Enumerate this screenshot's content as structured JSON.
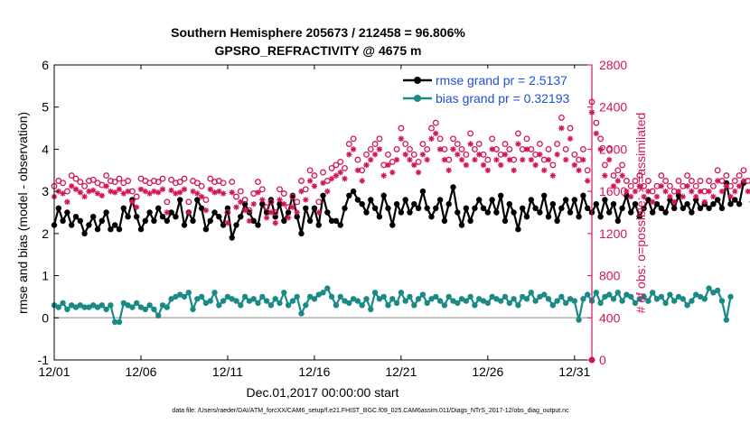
{
  "chart_data": {
    "type": "line",
    "title_line1": "Southern Hemisphere 205673 / 212458 = 96.806%",
    "title_line2": "GPSRO_REFRACTIVITY @ 4675 m",
    "xlabel": "Dec.01,2017 00:00:00 start",
    "ylabel_left": "rmse and bias (model - observation)",
    "ylabel_right": "# of obs: o=possible; ∗=assimilated",
    "footnote": "data file: /Users/raeder/DAI/ATM_forcXX/CAM6_setup/f.e21.FHIST_BGC.f09_025.CAM6assim.011/Diags_NTrS_2017-12/obs_diag_output.nc",
    "xlim": [
      0,
      31
    ],
    "ylim_left": [
      -1,
      6
    ],
    "ylim_right": [
      0,
      2800
    ],
    "x_ticks": [
      0,
      5,
      10,
      15,
      20,
      25,
      30
    ],
    "x_tick_labels": [
      "12/01",
      "12/06",
      "12/11",
      "12/16",
      "12/21",
      "12/26",
      "12/31"
    ],
    "y_left_ticks": [
      -1,
      0,
      1,
      2,
      3,
      4,
      5,
      6
    ],
    "y_left_tick_labels": [
      "-1",
      "0",
      "1",
      "2",
      "3",
      "4",
      "5",
      "6"
    ],
    "y_right_ticks": [
      0,
      400,
      800,
      1200,
      1600,
      2000,
      2400,
      2800
    ],
    "y_right_tick_labels": [
      "0",
      "400",
      "800",
      "1200",
      "1600",
      "2000",
      "2400",
      "2800"
    ],
    "legend": [
      "rmse grand pr = 2.5137",
      "bias grand pr = 0.32193"
    ],
    "x_start": 0,
    "x_step": 0.25,
    "series": [
      {
        "name": "rmse",
        "axis": "left",
        "color": "#000000",
        "marker": "circle",
        "values": [
          2.2,
          2.6,
          2.3,
          2.5,
          2.2,
          2.4,
          2.3,
          2.0,
          2.2,
          2.4,
          2.1,
          2.3,
          2.5,
          2.1,
          2.2,
          2.1,
          2.6,
          2.4,
          2.8,
          2.4,
          2.1,
          2.3,
          2.5,
          2.3,
          2.6,
          2.4,
          2.3,
          2.5,
          2.4,
          2.8,
          2.2,
          2.5,
          2.3,
          2.8,
          2.6,
          2.1,
          2.3,
          2.5,
          2.4,
          2.2,
          2.6,
          1.9,
          2.2,
          2.4,
          2.7,
          2.5,
          2.3,
          2.2,
          2.7,
          2.5,
          2.8,
          2.4,
          2.7,
          2.3,
          2.5,
          2.9,
          2.4,
          2.0,
          2.6,
          2.3,
          2.6,
          2.2,
          2.9,
          2.5,
          2.3,
          2.3,
          2.2,
          2.6,
          2.9,
          3.0,
          2.8,
          2.7,
          2.5,
          2.8,
          2.6,
          2.4,
          2.9,
          2.6,
          2.2,
          2.7,
          2.5,
          2.8,
          2.5,
          2.7,
          2.6,
          3.0,
          2.6,
          2.4,
          2.6,
          2.8,
          2.3,
          2.7,
          3.1,
          2.5,
          2.2,
          2.6,
          2.3,
          2.6,
          2.8,
          2.6,
          2.5,
          2.8,
          2.5,
          2.9,
          2.3,
          2.7,
          2.5,
          2.1,
          2.6,
          2.4,
          2.8,
          2.6,
          2.5,
          2.9,
          2.4,
          2.7,
          2.3,
          2.6,
          2.8,
          2.5,
          2.8,
          2.4,
          2.9,
          2.6,
          2.5,
          2.7,
          2.4,
          2.8,
          2.5,
          2.7,
          2.3,
          2.6,
          2.9,
          2.5,
          2.7,
          2.4,
          2.6,
          2.8,
          2.5,
          2.7,
          2.6,
          2.5,
          2.8,
          2.6,
          2.9,
          2.6,
          2.7,
          2.5,
          2.8,
          2.6,
          2.7,
          2.6,
          2.7,
          2.8,
          2.6,
          3.2,
          2.7,
          2.8,
          2.7,
          3.2
        ]
      },
      {
        "name": "bias",
        "axis": "left",
        "color": "#1a8a86",
        "marker": "circle",
        "values": [
          0.3,
          0.25,
          0.35,
          0.2,
          0.3,
          0.25,
          0.3,
          0.25,
          0.25,
          0.3,
          0.25,
          0.3,
          0.2,
          0.3,
          -0.1,
          -0.1,
          0.35,
          0.3,
          0.25,
          0.35,
          0.25,
          0.2,
          0.3,
          0.2,
          0.05,
          0.3,
          0.25,
          0.45,
          0.5,
          0.55,
          0.5,
          0.6,
          0.2,
          0.45,
          0.5,
          0.35,
          0.4,
          0.6,
          0.3,
          0.4,
          0.5,
          0.45,
          0.4,
          0.3,
          0.5,
          0.4,
          0.45,
          0.35,
          0.5,
          0.4,
          0.3,
          0.45,
          0.35,
          0.6,
          0.3,
          0.4,
          0.5,
          0.1,
          0.3,
          0.5,
          0.45,
          0.55,
          0.6,
          0.7,
          0.5,
          0.3,
          0.5,
          0.4,
          0.35,
          0.45,
          0.4,
          0.3,
          0.45,
          0.2,
          0.6,
          0.45,
          0.5,
          0.3,
          0.45,
          0.35,
          0.6,
          0.4,
          0.5,
          0.3,
          0.45,
          0.55,
          0.35,
          0.45,
          0.5,
          0.4,
          0.3,
          0.5,
          0.4,
          0.35,
          0.45,
          0.4,
          0.5,
          0.3,
          0.45,
          0.4,
          0.35,
          0.5,
          0.45,
          0.4,
          0.5,
          0.35,
          0.45,
          0.3,
          0.5,
          0.45,
          0.6,
          0.4,
          0.5,
          0.55,
          0.45,
          0.3,
          0.4,
          0.5,
          0.35,
          0.45,
          0.4,
          -0.05,
          0.45,
          0.55,
          0.4,
          0.6,
          0.35,
          0.5,
          0.55,
          0.45,
          0.6,
          0.4,
          0.55,
          0.5,
          0.35,
          0.45,
          0.5,
          0.4,
          0.6,
          0.45,
          0.5,
          0.35,
          0.55,
          0.4,
          0.5,
          0.45,
          0.3,
          0.4,
          0.55,
          0.5,
          0.45,
          0.7,
          0.6,
          0.65,
          0.4,
          -0.05,
          0.5
        ]
      },
      {
        "name": "possible",
        "axis": "right",
        "color": "#d4145a",
        "marker": "open-circle",
        "values": [
          1650,
          1700,
          1680,
          1600,
          1750,
          1720,
          1690,
          1650,
          1700,
          1710,
          1680,
          1660,
          1750,
          1700,
          1690,
          1720,
          1680,
          1700,
          1600,
          1550,
          1720,
          1700,
          1680,
          1700,
          1690,
          1720,
          1500,
          1710,
          1680,
          1690,
          1720,
          1500,
          1700,
          1680,
          1650,
          1520,
          1720,
          1690,
          1700,
          1680,
          1400,
          1690,
          1550,
          1600,
          1520,
          1420,
          1580,
          1690,
          1620,
          1450,
          1500,
          1400,
          1620,
          1580,
          1450,
          1550,
          1500,
          1700,
          1620,
          1800,
          1750,
          1500,
          1780,
          1700,
          1820,
          1850,
          1880,
          1820,
          2050,
          2100,
          1900,
          1800,
          1950,
          2000,
          2050,
          2100,
          1850,
          1950,
          1880,
          2000,
          2200,
          2050,
          2000,
          1950,
          1880,
          2050,
          2000,
          2200,
          2250,
          2100,
          2000,
          1900,
          2100,
          2050,
          2000,
          1950,
          2150,
          2000,
          2050,
          1950,
          1900,
          2100,
          2000,
          1950,
          2050,
          2000,
          1900,
          2150,
          2000,
          2100,
          2000,
          1950,
          2050,
          1900,
          2000,
          1850,
          2050,
          2300,
          2000,
          2200,
          1950,
          1900,
          2000,
          1800,
          2450,
          2250,
          2100,
          1850,
          2000,
          1750,
          1800,
          1850,
          1700,
          1650,
          1700,
          1750,
          1650,
          1700,
          1600,
          1650,
          1750,
          1700,
          1650,
          1600,
          1700,
          1650,
          1750,
          1700,
          1650,
          1700,
          1600,
          1700,
          1650,
          1800,
          1700,
          1750,
          1650,
          1700,
          1750,
          1800,
          1700,
          1600
        ]
      },
      {
        "name": "assimilated",
        "axis": "right",
        "color": "#d4145a",
        "marker": "star",
        "values": [
          1550,
          1600,
          1580,
          1500,
          1650,
          1620,
          1590,
          1550,
          1600,
          1610,
          1580,
          1560,
          1650,
          1600,
          1590,
          1620,
          1580,
          1600,
          1500,
          1450,
          1620,
          1600,
          1580,
          1600,
          1590,
          1620,
          1400,
          1610,
          1580,
          1590,
          1620,
          1400,
          1600,
          1580,
          1550,
          1420,
          1620,
          1590,
          1600,
          1580,
          1300,
          1590,
          1450,
          1500,
          1420,
          1320,
          1480,
          1590,
          1520,
          1350,
          1400,
          1300,
          1520,
          1480,
          1350,
          1450,
          1400,
          1600,
          1520,
          1700,
          1650,
          1400,
          1680,
          1600,
          1720,
          1750,
          1780,
          1720,
          1950,
          2000,
          1800,
          1700,
          1850,
          1900,
          1950,
          2000,
          1750,
          1850,
          1780,
          1900,
          2100,
          1950,
          1900,
          1850,
          1780,
          1950,
          1900,
          2100,
          2150,
          2000,
          1900,
          1800,
          2000,
          1950,
          1900,
          1850,
          2050,
          1900,
          1950,
          1850,
          1800,
          2000,
          1900,
          1850,
          1950,
          1900,
          1800,
          2050,
          1900,
          2000,
          1900,
          1850,
          1950,
          1800,
          1900,
          1750,
          1950,
          2200,
          1900,
          2100,
          1850,
          1800,
          1900,
          1700,
          2350,
          2150,
          2000,
          1750,
          1900,
          1650,
          1700,
          1750,
          1600,
          1550,
          1600,
          1650,
          1550,
          1600,
          1500,
          1550,
          1650,
          1600,
          1550,
          1500,
          1600,
          1550,
          1650,
          1600,
          1550,
          1600,
          1500,
          1600,
          1550,
          1700,
          1600,
          1650,
          1550,
          1600,
          1650,
          1700,
          1600,
          1500
        ]
      }
    ],
    "colors": {
      "right_axis": "#d4145a",
      "zero_line": "#b0b0b0",
      "legend_text": "#1f4fd6"
    }
  }
}
